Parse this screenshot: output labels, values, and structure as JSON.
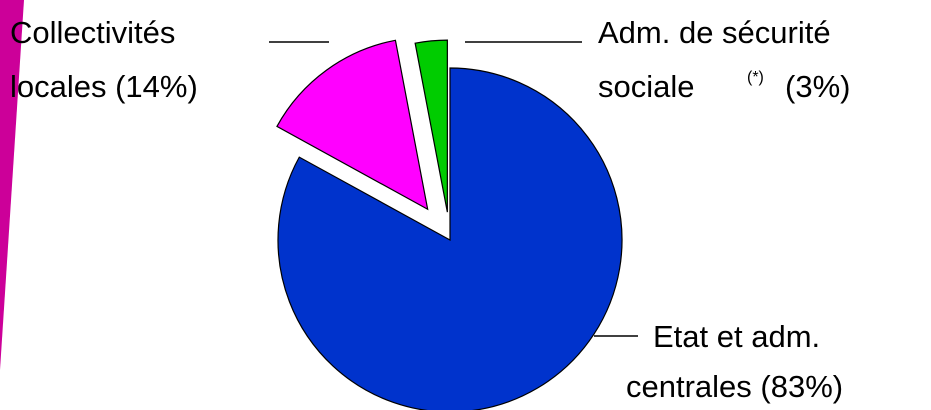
{
  "chart_data": {
    "type": "pie",
    "slices": [
      {
        "key": "etat",
        "value": 83,
        "color": "#0033cc",
        "exploded": false,
        "label_lines": [
          "Etat et adm.",
          "centrales (83%)"
        ]
      },
      {
        "key": "collectivites",
        "value": 14,
        "color": "#ff00ff",
        "exploded": true,
        "label_lines": [
          "Collectivités",
          "locales (14%)"
        ]
      },
      {
        "key": "secu",
        "value": 3,
        "color": "#00cc00",
        "exploded": true,
        "label_lines": [
          "Adm. de sécurité",
          "sociale",
          "(*)",
          "(3%)"
        ]
      }
    ],
    "decoration": {
      "accent_color": "#cc0099"
    }
  }
}
